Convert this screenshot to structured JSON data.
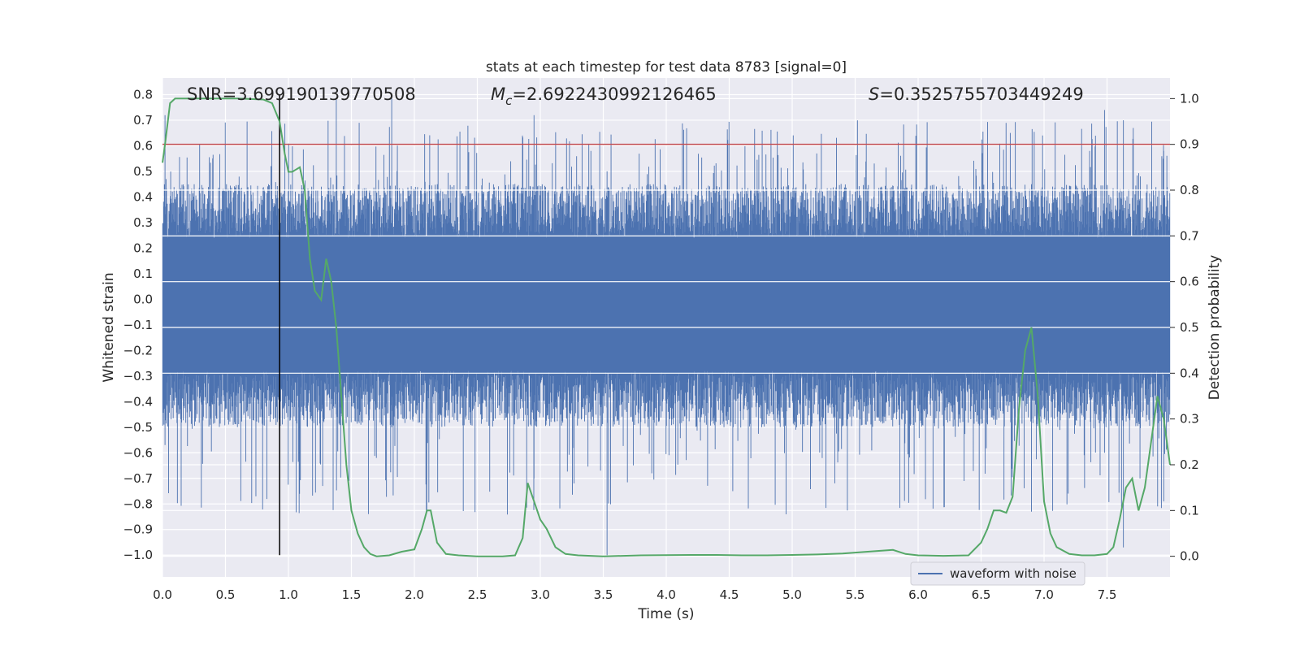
{
  "chart_data": {
    "type": "line",
    "title": "stats at each timestep for test data 8783 [signal=0]",
    "xlabel": "Time (s)",
    "ylabel": "Whitened strain",
    "ylabel_right": "Detection probability",
    "xlim": [
      0.0,
      8.0
    ],
    "ylim_left": [
      -1.085,
      0.865
    ],
    "ylim_right": [
      -0.045,
      1.045
    ],
    "x_ticks": [
      "0.0",
      "0.5",
      "1.0",
      "1.5",
      "2.0",
      "2.5",
      "3.0",
      "3.5",
      "4.0",
      "4.5",
      "5.0",
      "5.5",
      "6.0",
      "6.5",
      "7.0",
      "7.5"
    ],
    "x_tick_values": [
      0.0,
      0.5,
      1.0,
      1.5,
      2.0,
      2.5,
      3.0,
      3.5,
      4.0,
      4.5,
      5.0,
      5.5,
      6.0,
      6.5,
      7.0,
      7.5
    ],
    "y_ticks_left": [
      "0.8",
      "0.7",
      "0.6",
      "0.5",
      "0.4",
      "0.3",
      "0.2",
      "0.1",
      "0.0",
      "−0.1",
      "−0.2",
      "−0.3",
      "−0.4",
      "−0.5",
      "−0.6",
      "−0.7",
      "−0.8",
      "−0.9",
      "−1.0"
    ],
    "y_tick_values_left": [
      0.8,
      0.7,
      0.6,
      0.5,
      0.4,
      0.3,
      0.2,
      0.1,
      0.0,
      -0.1,
      -0.2,
      -0.3,
      -0.4,
      -0.5,
      -0.6,
      -0.7,
      -0.8,
      -0.9,
      -1.0
    ],
    "y_ticks_right": [
      "1.0",
      "0.9",
      "0.8",
      "0.7",
      "0.6",
      "0.5",
      "0.4",
      "0.3",
      "0.2",
      "0.1",
      "0.0"
    ],
    "y_tick_values_right": [
      1.0,
      0.9,
      0.8,
      0.7,
      0.6,
      0.5,
      0.4,
      0.3,
      0.2,
      0.1,
      0.0
    ],
    "grid": true,
    "legend": {
      "placement": "lower-right",
      "entries": [
        "waveform with noise"
      ]
    },
    "annotations": {
      "snr": "SNR=3.699190139770508",
      "mc_symbol": "M",
      "mc_sub": "c",
      "mc_value": "=2.6922430992126465",
      "s_symbol": "S",
      "s_value": "=0.3525755703449249"
    },
    "threshold_line": {
      "axis": "right",
      "y": 0.9
    },
    "vertical_line": {
      "x": 0.93,
      "y_range": [
        -1.0,
        0.8
      ]
    },
    "series": [
      {
        "name": "waveform with noise",
        "axis": "left",
        "kind": "noise",
        "base_band": [
          -0.28,
          0.24
        ],
        "typical_peak": 0.45,
        "max_peak": 0.8,
        "min_trough": -1.0
      },
      {
        "axis": "right",
        "kind": "line",
        "x": [
          0.0,
          0.02,
          0.06,
          0.1,
          0.2,
          0.4,
          0.6,
          0.8,
          0.87,
          0.93,
          0.97,
          1.0,
          1.03,
          1.06,
          1.09,
          1.13,
          1.17,
          1.21,
          1.26,
          1.3,
          1.34,
          1.38,
          1.42,
          1.46,
          1.5,
          1.55,
          1.6,
          1.65,
          1.7,
          1.8,
          1.9,
          2.0,
          2.06,
          2.1,
          2.13,
          2.18,
          2.25,
          2.35,
          2.5,
          2.7,
          2.8,
          2.86,
          2.9,
          2.95,
          3.0,
          3.05,
          3.12,
          3.2,
          3.3,
          3.5,
          3.8,
          4.2,
          4.4,
          4.6,
          4.8,
          5.0,
          5.2,
          5.4,
          5.5,
          5.6,
          5.7,
          5.8,
          5.9,
          6.0,
          6.2,
          6.4,
          6.5,
          6.55,
          6.6,
          6.65,
          6.7,
          6.75,
          6.8,
          6.85,
          6.9,
          6.95,
          7.0,
          7.05,
          7.1,
          7.2,
          7.3,
          7.4,
          7.5,
          7.55,
          7.6,
          7.65,
          7.7,
          7.75,
          7.8,
          7.85,
          7.9,
          7.95,
          8.0
        ],
        "y": [
          0.86,
          0.9,
          0.99,
          1.0,
          1.0,
          1.0,
          1.0,
          0.998,
          0.99,
          0.95,
          0.88,
          0.84,
          0.84,
          0.845,
          0.85,
          0.8,
          0.65,
          0.58,
          0.56,
          0.65,
          0.6,
          0.5,
          0.35,
          0.2,
          0.1,
          0.05,
          0.02,
          0.005,
          0.0,
          0.002,
          0.01,
          0.015,
          0.06,
          0.1,
          0.1,
          0.03,
          0.005,
          0.002,
          0.0,
          0.0,
          0.002,
          0.04,
          0.16,
          0.12,
          0.08,
          0.06,
          0.02,
          0.005,
          0.002,
          0.0,
          0.002,
          0.003,
          0.003,
          0.002,
          0.002,
          0.003,
          0.004,
          0.006,
          0.008,
          0.01,
          0.012,
          0.014,
          0.005,
          0.002,
          0.001,
          0.002,
          0.03,
          0.06,
          0.1,
          0.1,
          0.095,
          0.13,
          0.32,
          0.45,
          0.5,
          0.35,
          0.12,
          0.05,
          0.02,
          0.005,
          0.002,
          0.002,
          0.005,
          0.02,
          0.08,
          0.15,
          0.17,
          0.1,
          0.15,
          0.25,
          0.35,
          0.3,
          0.2
        ]
      }
    ]
  }
}
